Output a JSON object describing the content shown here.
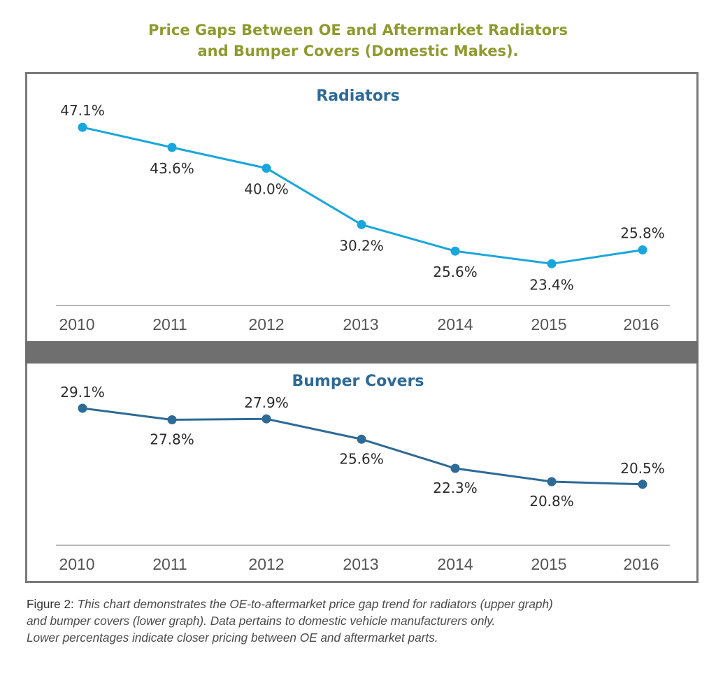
{
  "title_lines": [
    "Price Gaps Between OE and Aftermarket Radiators",
    "and Bumper Covers (Domestic Makes)."
  ],
  "colors": {
    "title": "#8f9a2e",
    "radiators": "#19a6dc",
    "bumpers": "#2d6a96",
    "subtitle": "#2d6a96",
    "frame": "#7a7a7a",
    "divider": "#6f6f6f"
  },
  "chart_data": [
    {
      "type": "line",
      "title": "Radiators",
      "categories": [
        "2010",
        "2011",
        "2012",
        "2013",
        "2014",
        "2015",
        "2016"
      ],
      "values": [
        47.1,
        43.6,
        40.0,
        30.2,
        25.6,
        23.4,
        25.8
      ],
      "data_labels": [
        "47.1%",
        "43.6%",
        "40.0%",
        "30.2%",
        "25.6%",
        "23.4%",
        "25.8%"
      ],
      "label_positions": [
        "above",
        "below",
        "below",
        "below",
        "below",
        "below",
        "above"
      ],
      "ylim": [
        17,
        51
      ],
      "xlabel": "",
      "ylabel": "",
      "grid": false
    },
    {
      "type": "line",
      "title": "Bumper Covers",
      "categories": [
        "2010",
        "2011",
        "2012",
        "2013",
        "2014",
        "2015",
        "2016"
      ],
      "values": [
        29.1,
        27.8,
        27.9,
        25.6,
        22.3,
        20.8,
        20.5
      ],
      "data_labels": [
        "29.1%",
        "27.8%",
        "27.9%",
        "25.6%",
        "22.3%",
        "20.8%",
        "20.5%"
      ],
      "label_positions": [
        "above",
        "below",
        "above",
        "below",
        "below",
        "below",
        "above"
      ],
      "ylim": [
        14,
        31
      ],
      "xlabel": "",
      "ylabel": "",
      "grid": false
    }
  ],
  "caption": {
    "lead": "Figure 2: ",
    "lines": [
      "This chart demonstrates the OE-to-aftermarket price gap trend for radiators (upper graph)",
      "and bumper covers (lower graph). Data pertains to domestic vehicle manufacturers only.",
      "Lower percentages indicate closer pricing between OE and aftermarket parts."
    ]
  }
}
